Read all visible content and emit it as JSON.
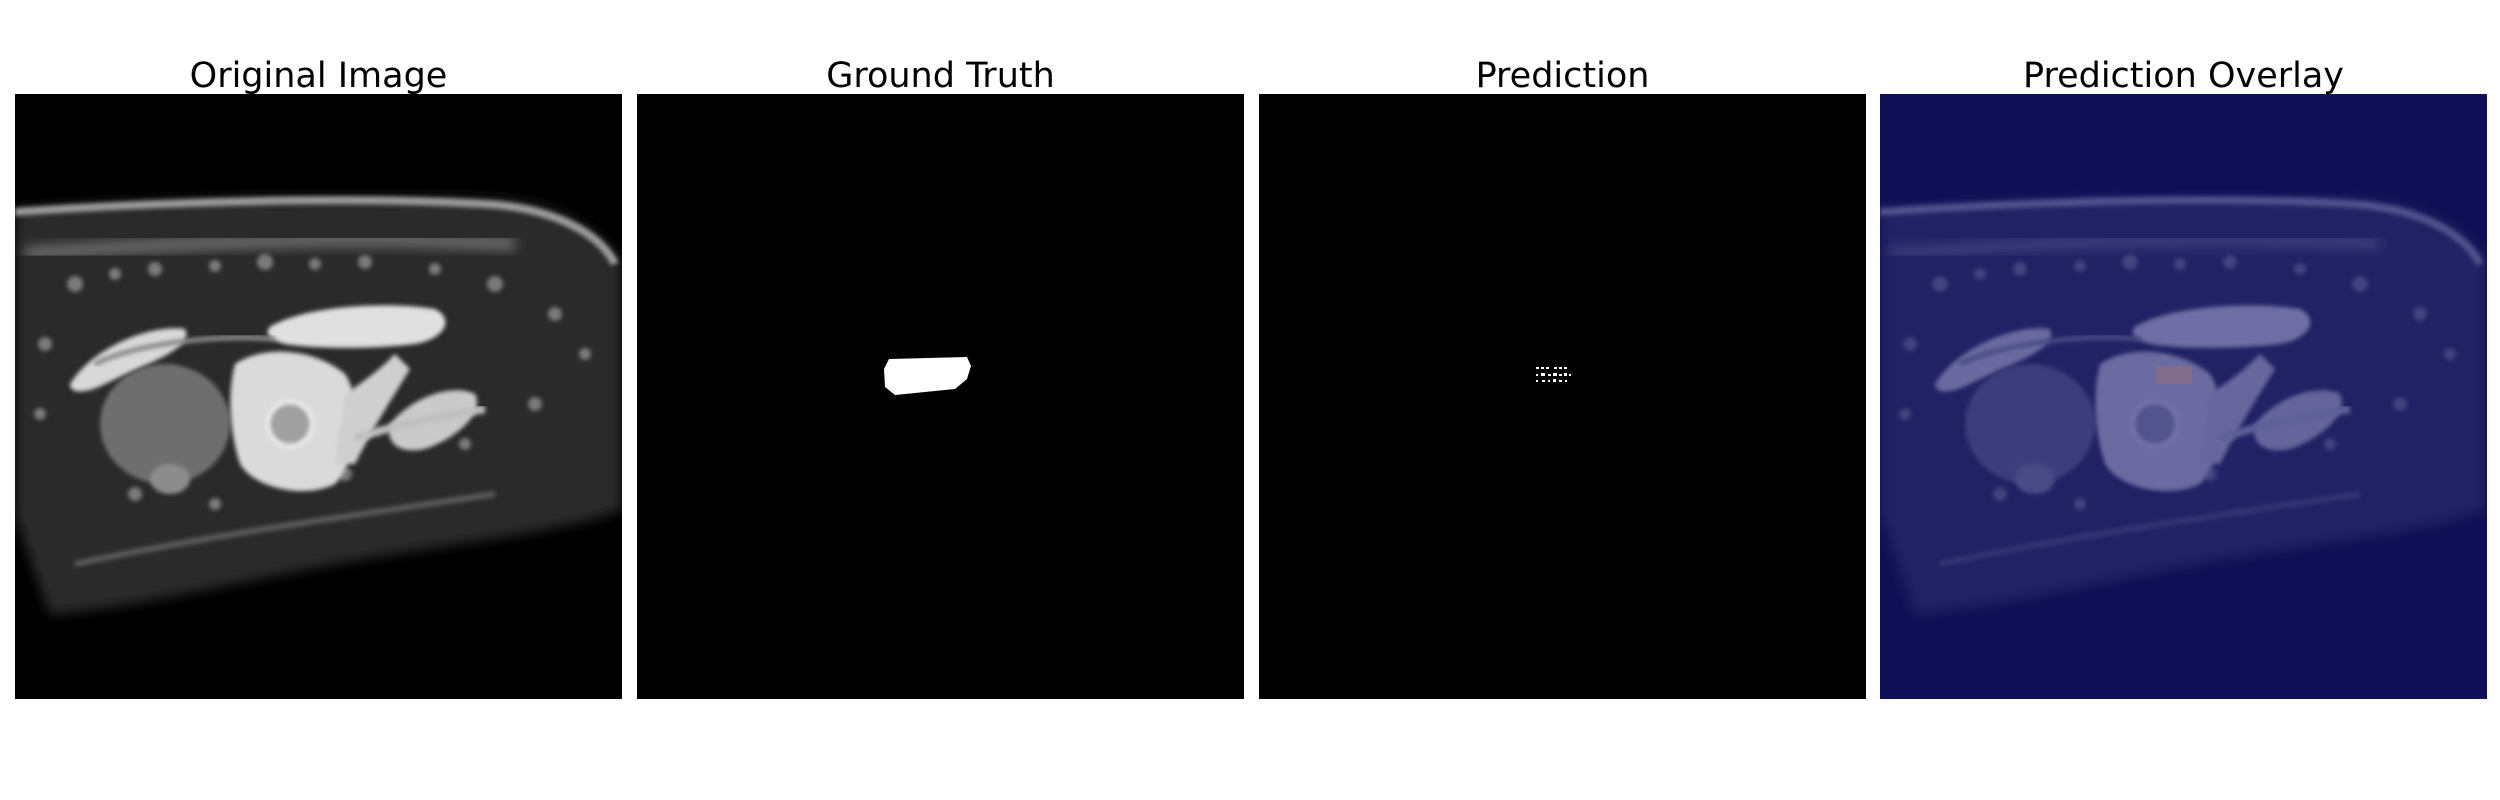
{
  "figure": {
    "panels": [
      {
        "title": "Original Image"
      },
      {
        "title": "Ground Truth"
      },
      {
        "title": "Prediction"
      },
      {
        "title": "Prediction Overlay"
      }
    ]
  },
  "colors": {
    "background": "#000000",
    "mask": "#ffffff",
    "overlay_tint": "#000044"
  }
}
